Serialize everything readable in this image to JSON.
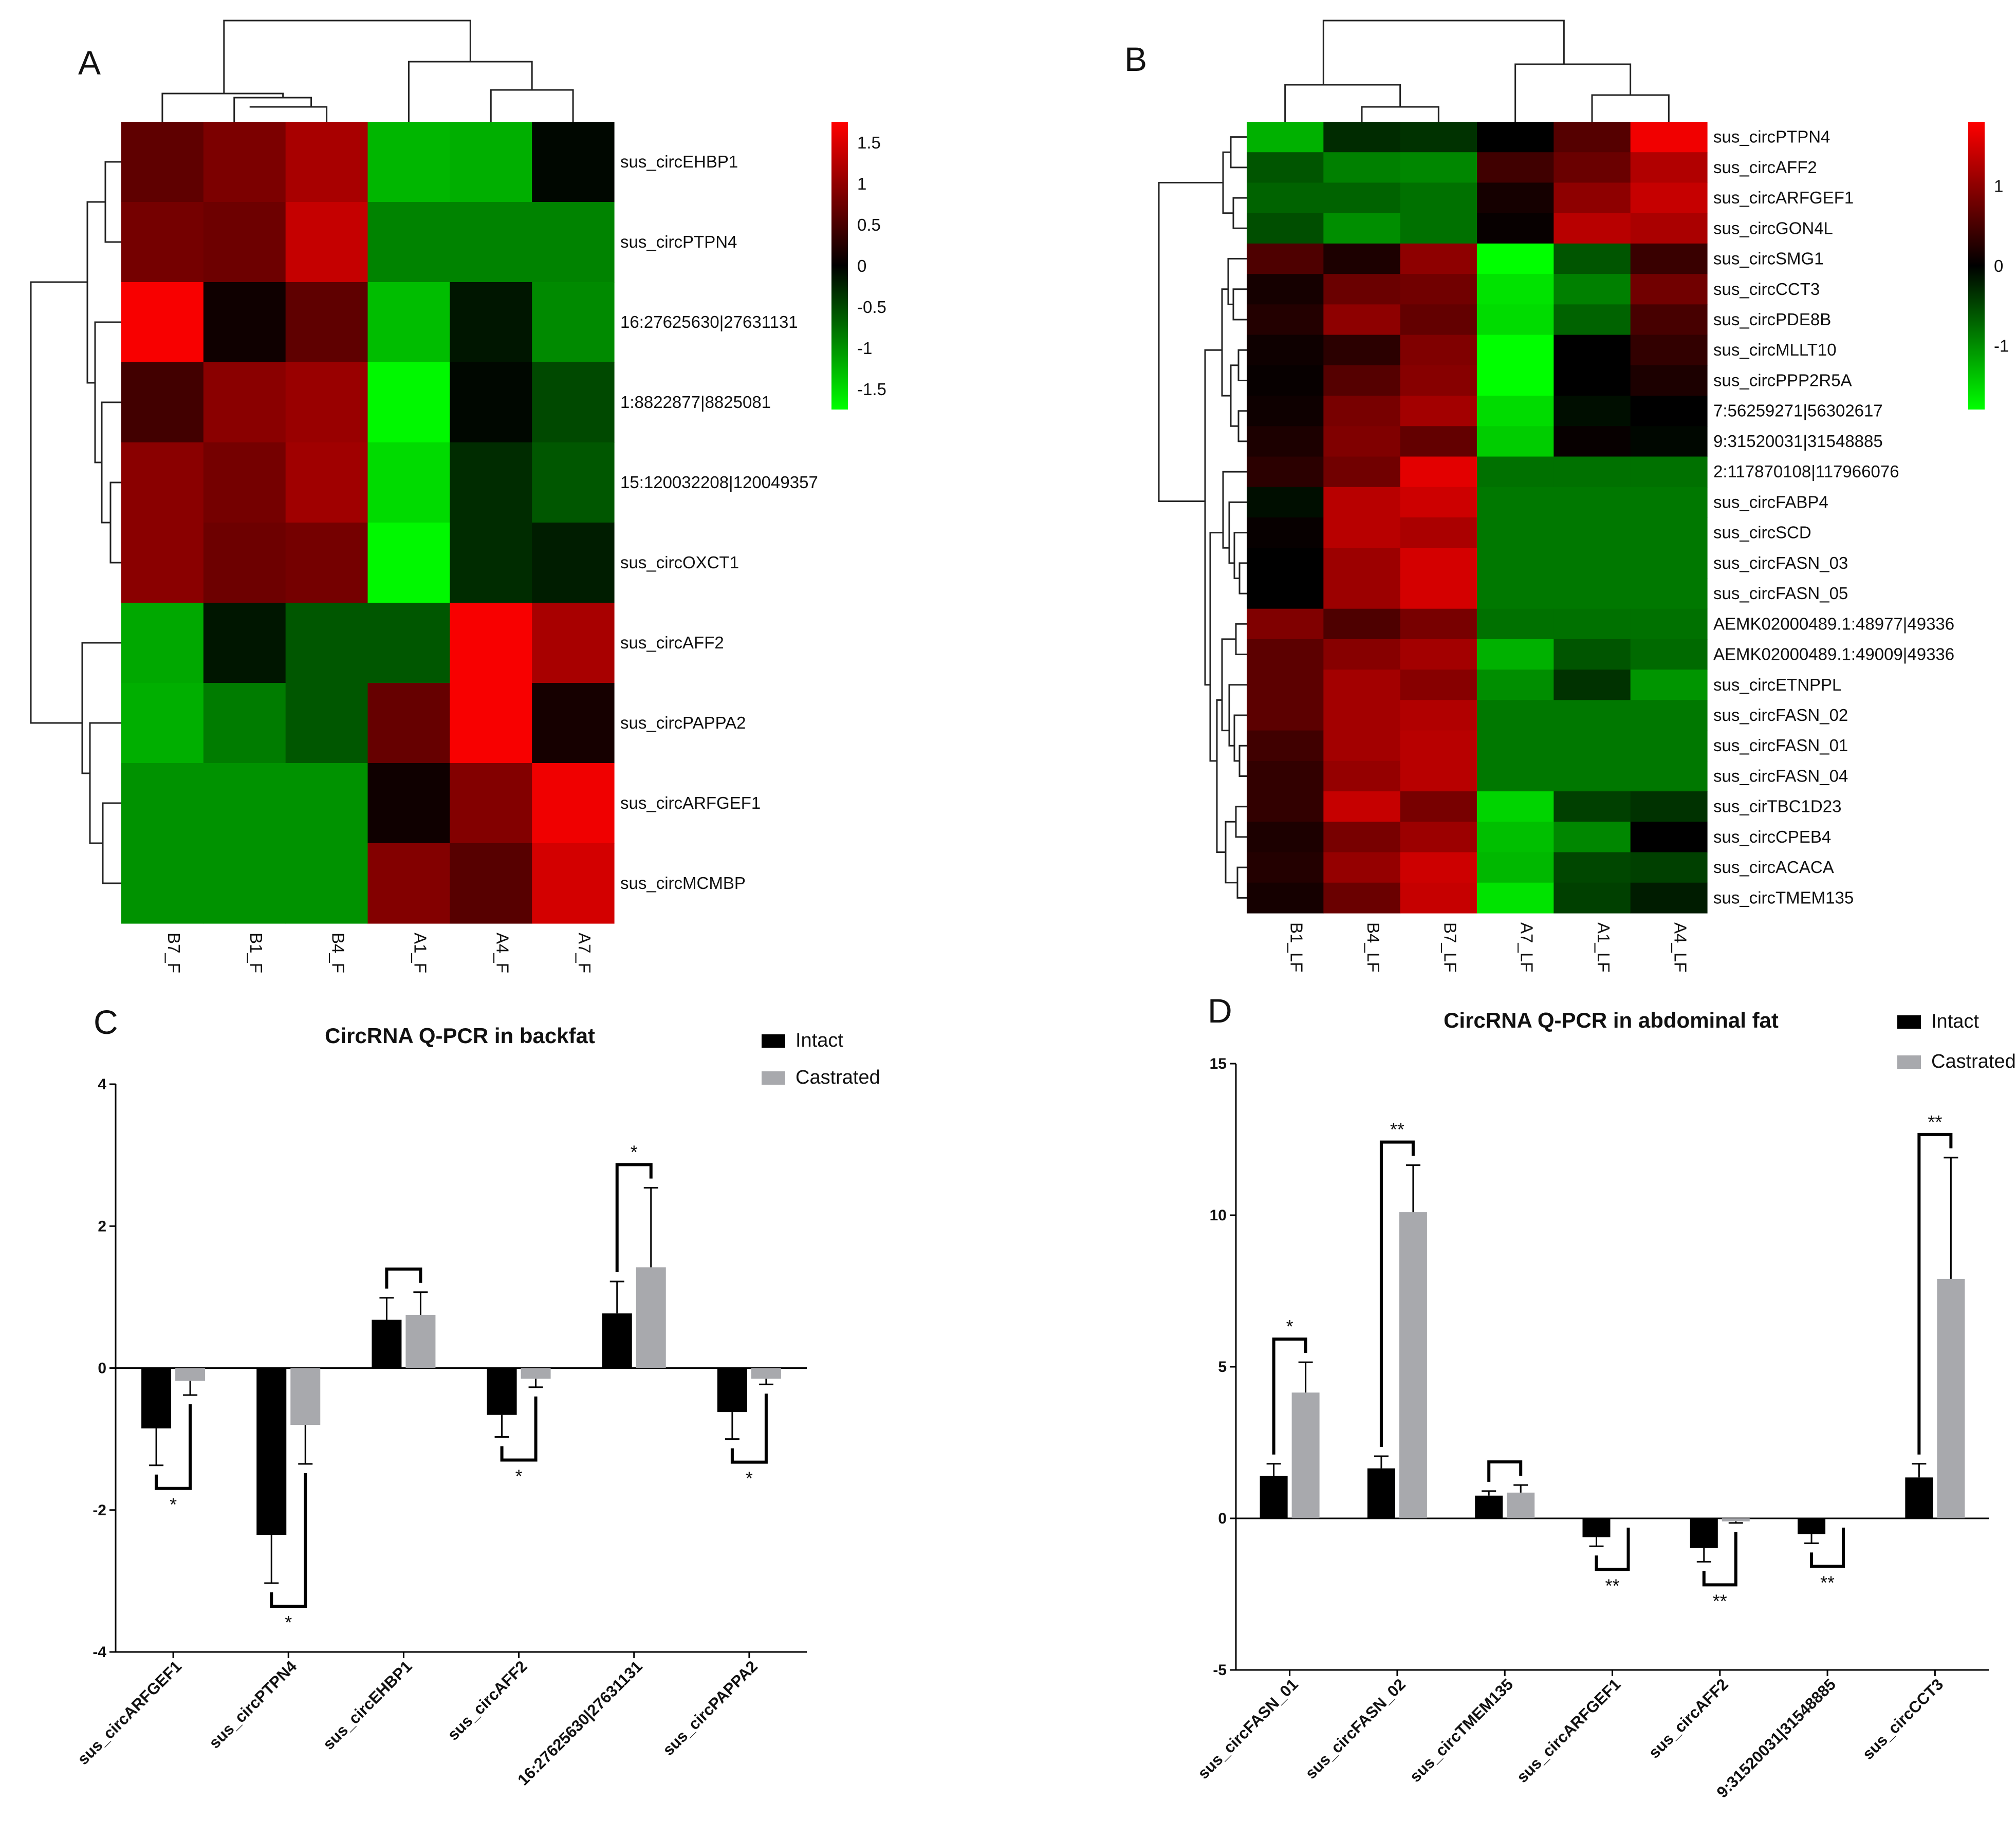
{
  "chart_data": [
    {
      "panel": "A",
      "type": "heatmap",
      "columns": [
        "B7_F",
        "B1_F",
        "B4_F",
        "A1_F",
        "A4_F",
        "A7_F"
      ],
      "rows": [
        "sus_circEHBP1",
        "sus_circPTPN4",
        "16:27625630|27631131",
        "1:8822877|8825081",
        "15:120032208|120049357",
        "sus_circOXCT1",
        "sus_circAFF2",
        "sus_circPAPPA2",
        "sus_circARFGEF1",
        "sus_circMCMBP"
      ],
      "values": [
        [
          0.65,
          0.85,
          1.15,
          -1.25,
          -1.2,
          -0.05
        ],
        [
          0.8,
          0.75,
          1.35,
          -0.9,
          -0.9,
          -0.9
        ],
        [
          1.7,
          0.1,
          0.65,
          -1.3,
          -0.15,
          -0.95
        ],
        [
          0.45,
          0.95,
          1.05,
          -1.7,
          -0.05,
          -0.5
        ],
        [
          0.95,
          0.8,
          1.1,
          -1.5,
          -0.3,
          -0.6
        ],
        [
          0.95,
          0.75,
          0.8,
          -1.7,
          -0.3,
          -0.2
        ],
        [
          -1.15,
          -0.15,
          -0.6,
          -0.6,
          1.7,
          1.15
        ],
        [
          -1.2,
          -0.85,
          -0.6,
          0.7,
          1.7,
          0.15
        ],
        [
          -1.0,
          -1.0,
          -1.0,
          0.1,
          0.9,
          1.65
        ],
        [
          -1.0,
          -1.0,
          -1.0,
          0.9,
          0.6,
          1.45
        ]
      ],
      "colorbar_ticks": [
        "1.5",
        "1",
        "0.5",
        "0",
        "-0.5",
        "-1",
        "-1.5"
      ],
      "colorscale": {
        "low": "#00ff00",
        "mid": "#000000",
        "high": "#ff0000",
        "range": [
          -1.75,
          1.75
        ]
      }
    },
    {
      "panel": "B",
      "type": "heatmap",
      "columns": [
        "B1_LF",
        "B4_LF",
        "B7_LF",
        "A7_LF",
        "A1_LF",
        "A4_LF"
      ],
      "rows": [
        "sus_circPTPN4",
        "sus_circAFF2",
        "sus_circARFGEF1",
        "sus_circGON4L",
        "sus_circSMG1",
        "sus_circCCT3",
        "sus_circPDE8B",
        "sus_circMLLT10",
        "sus_circPPP2R5A",
        "7:56259271|56302617",
        "9:31520031|31548885",
        "2:117870108|117966076",
        "sus_circFABP4",
        "sus_circSCD",
        "sus_circFASN_03",
        "sus_circFASN_05",
        "AEMK02000489.1:48977|49336",
        "AEMK02000489.1:49009|49336",
        "sus_circETNPPL",
        "sus_circFASN_02",
        "sus_circFASN_01",
        "sus_circFASN_04",
        "sus_cirTBC1D23",
        "sus_circCPEB4",
        "sus_circACACA",
        "sus_circTMEM135"
      ],
      "values": [
        [
          -1.25,
          -0.3,
          -0.35,
          0.0,
          0.6,
          1.7
        ],
        [
          -0.6,
          -0.9,
          -0.95,
          0.45,
          0.75,
          1.25
        ],
        [
          -0.7,
          -0.7,
          -0.8,
          0.15,
          1.0,
          1.4
        ],
        [
          -0.55,
          -1.0,
          -0.8,
          0.05,
          1.3,
          1.2
        ],
        [
          0.55,
          0.2,
          1.0,
          -1.8,
          -0.6,
          0.4
        ],
        [
          0.15,
          0.75,
          0.8,
          -1.6,
          -0.9,
          0.8
        ],
        [
          0.25,
          1.0,
          0.7,
          -1.55,
          -0.7,
          0.5
        ],
        [
          0.1,
          0.3,
          0.9,
          -1.8,
          0.0,
          0.35
        ],
        [
          0.05,
          0.6,
          0.95,
          -1.8,
          0.0,
          0.2
        ],
        [
          0.1,
          0.85,
          1.15,
          -1.55,
          -0.1,
          0.0
        ],
        [
          0.2,
          0.9,
          0.7,
          -1.45,
          0.05,
          -0.05
        ],
        [
          0.3,
          0.8,
          1.6,
          -0.8,
          -0.8,
          -0.8
        ],
        [
          -0.1,
          1.3,
          1.45,
          -0.85,
          -0.85,
          -0.85
        ],
        [
          0.05,
          1.3,
          1.2,
          -0.85,
          -0.85,
          -0.85
        ],
        [
          0.0,
          1.1,
          1.5,
          -0.85,
          -0.85,
          -0.85
        ],
        [
          0.0,
          1.1,
          1.5,
          -0.85,
          -0.85,
          -0.85
        ],
        [
          0.9,
          0.55,
          0.85,
          -0.8,
          -0.8,
          -0.8
        ],
        [
          0.65,
          0.95,
          1.15,
          -1.25,
          -0.6,
          -0.75
        ],
        [
          0.65,
          1.15,
          0.95,
          -1.0,
          -0.35,
          -1.05
        ],
        [
          0.65,
          1.15,
          1.25,
          -0.85,
          -0.85,
          -0.85
        ],
        [
          0.45,
          1.15,
          1.3,
          -0.85,
          -0.85,
          -0.85
        ],
        [
          0.35,
          1.05,
          1.3,
          -0.85,
          -0.85,
          -0.85
        ],
        [
          0.35,
          1.4,
          0.85,
          -1.5,
          -0.45,
          -0.35
        ],
        [
          0.2,
          0.85,
          1.1,
          -1.35,
          -0.95,
          0.0
        ],
        [
          0.25,
          1.05,
          1.45,
          -1.3,
          -0.5,
          -0.45
        ],
        [
          0.15,
          0.75,
          1.4,
          -1.6,
          -0.45,
          -0.2
        ]
      ],
      "colorbar_ticks": [
        "1",
        "0",
        "-1"
      ],
      "colorscale": {
        "low": "#00ff00",
        "mid": "#000000",
        "high": "#ff0000",
        "range": [
          -1.8,
          1.8
        ]
      }
    },
    {
      "panel": "C",
      "type": "bar",
      "title": "CircRNA Q-PCR in backfat",
      "categories": [
        "sus_circARFGEF1",
        "sus_circPTPN4",
        "sus_circEHBP1",
        "sus_circAFF2",
        "16:27625630|27631131",
        "sus_circPAPPA2"
      ],
      "series": [
        {
          "name": "Intact",
          "color": "#000000",
          "values": [
            -0.85,
            -2.35,
            0.68,
            -0.66,
            0.77,
            -0.62
          ],
          "errors": [
            0.52,
            0.68,
            0.31,
            0.31,
            0.45,
            0.38
          ]
        },
        {
          "name": "Castrated",
          "color": "#a8a9ad",
          "values": [
            -0.18,
            -0.8,
            0.75,
            -0.15,
            1.42,
            -0.15
          ],
          "errors": [
            0.2,
            0.55,
            0.32,
            0.12,
            1.12,
            0.08
          ]
        }
      ],
      "significance": [
        "*",
        "*",
        "",
        "*",
        "*",
        "*"
      ],
      "yticks": [
        "4",
        "2",
        "0",
        "-2",
        "-4"
      ],
      "ylim": [
        -4,
        4
      ]
    },
    {
      "panel": "D",
      "type": "bar",
      "title": "CircRNA Q-PCR in abdominal fat",
      "categories": [
        "sus_circFASN_01",
        "sus_circFASN_02",
        "sus_circTMEM135",
        "sus_circARFGEF1",
        "sus_circAFF2",
        "9:31520031|31548885",
        "sus_circCCT3"
      ],
      "series": [
        {
          "name": "Intact",
          "color": "#000000",
          "values": [
            1.4,
            1.65,
            0.75,
            -0.62,
            -0.98,
            -0.52,
            1.35
          ],
          "errors": [
            0.4,
            0.4,
            0.15,
            0.3,
            0.45,
            0.3,
            0.45
          ]
        },
        {
          "name": "Castrated",
          "color": "#a8a9ad",
          "values": [
            4.15,
            10.1,
            0.85,
            0.0,
            -0.1,
            0.0,
            7.9
          ],
          "errors": [
            1.0,
            1.55,
            0.25,
            0.0,
            0.05,
            0.0,
            4.0
          ]
        }
      ],
      "significance": [
        "*",
        "**",
        "",
        "**",
        "**",
        "**",
        "**"
      ],
      "yticks": [
        "15",
        "10",
        "5",
        "0",
        "-5"
      ],
      "ylim": [
        -5,
        15
      ]
    }
  ],
  "panel_labels": [
    "A",
    "B",
    "C",
    "D"
  ]
}
